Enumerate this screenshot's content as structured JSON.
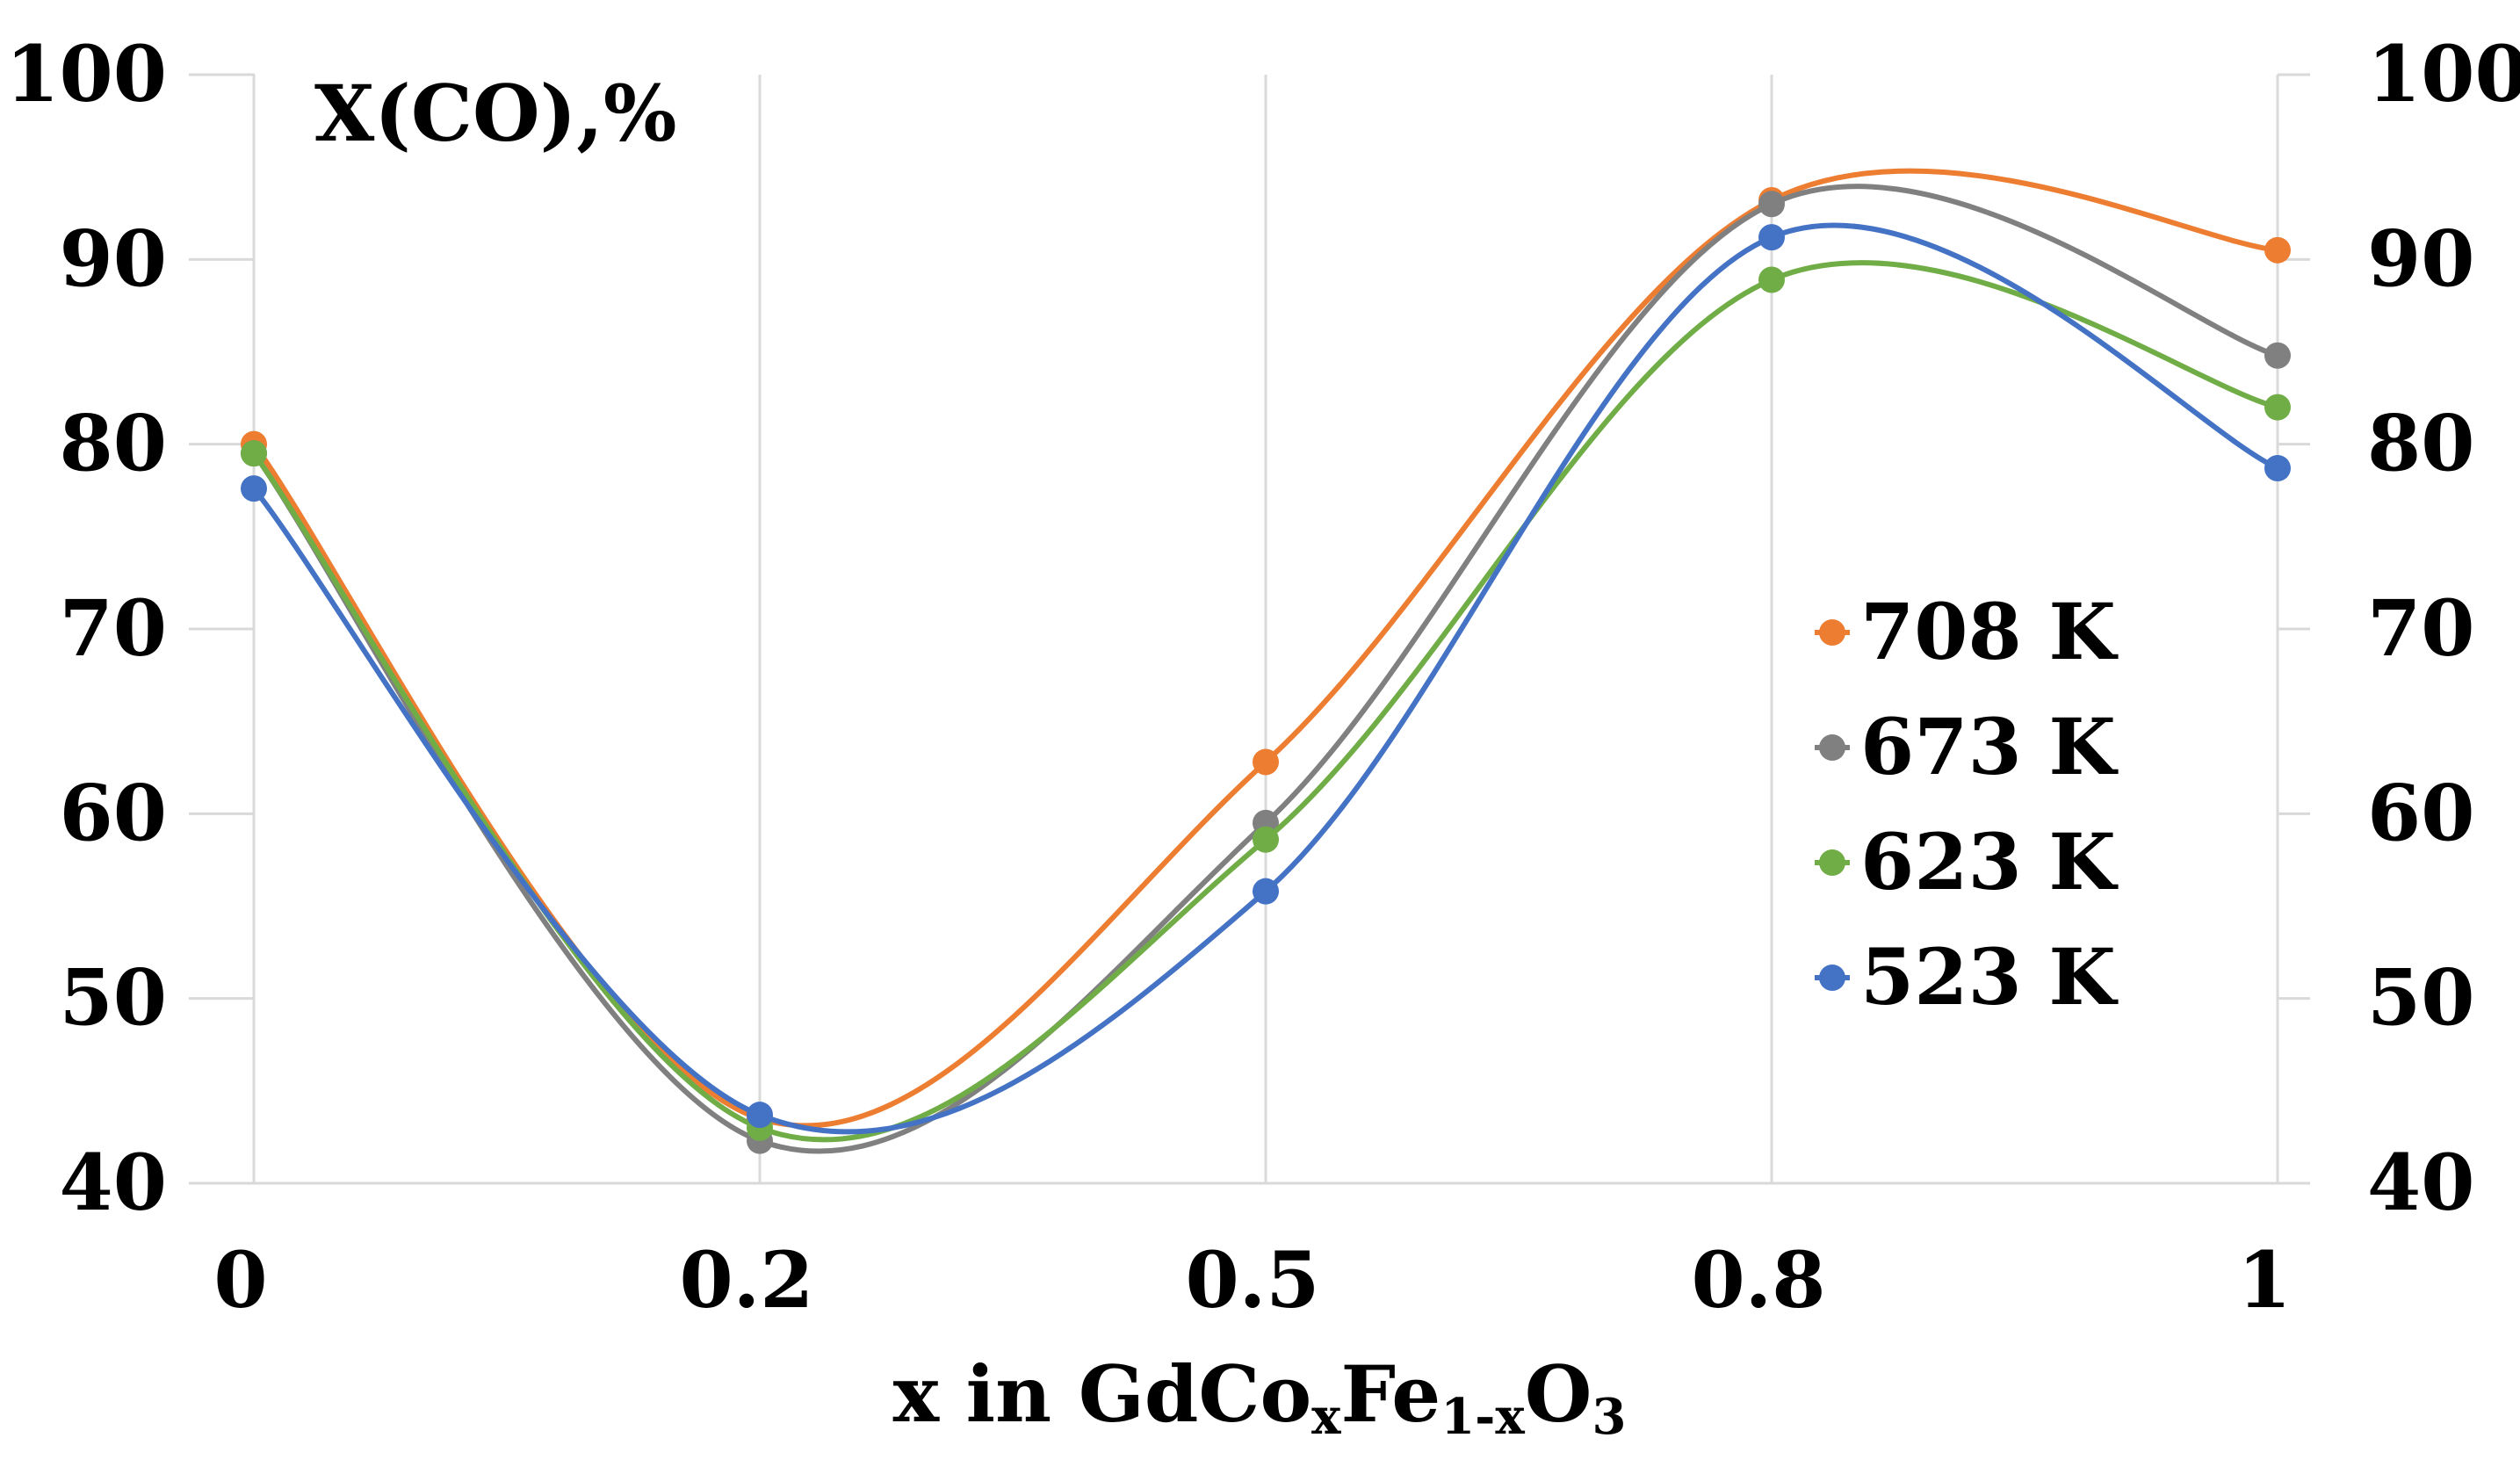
{
  "chart_data": {
    "type": "line",
    "x_kind": "categorical",
    "categories": [
      "0",
      "0.2",
      "0.5",
      "0.8",
      "1"
    ],
    "ylim": [
      40,
      100
    ],
    "yticks": [
      40,
      50,
      60,
      70,
      80,
      90,
      100
    ],
    "y_tick_labels": [
      "40",
      "50",
      "60",
      "70",
      "80",
      "90",
      "100"
    ],
    "ylabel": "X(CO),%",
    "xlabel": {
      "prefix": "x in GdCo",
      "sub1": "x",
      "mid": "Fe",
      "sub2": "1-x",
      "mid2": "O",
      "sub3": "3"
    },
    "smooth": true,
    "markers": true,
    "grid": {
      "vertical": true,
      "horizontal": false
    },
    "legend_position": "right",
    "series": [
      {
        "name": "708 K",
        "color": "#ED7D31",
        "values": [
          80.0,
          43.5,
          62.8,
          93.2,
          90.5
        ]
      },
      {
        "name": "673 K",
        "color": "#808080",
        "values": [
          79.5,
          42.3,
          59.5,
          93.0,
          84.8
        ]
      },
      {
        "name": "623 K",
        "color": "#70AD47",
        "values": [
          79.5,
          43.0,
          58.6,
          88.9,
          82.0
        ]
      },
      {
        "name": "523 K",
        "color": "#4472C4",
        "values": [
          77.6,
          43.7,
          55.8,
          91.2,
          78.7
        ]
      }
    ]
  }
}
